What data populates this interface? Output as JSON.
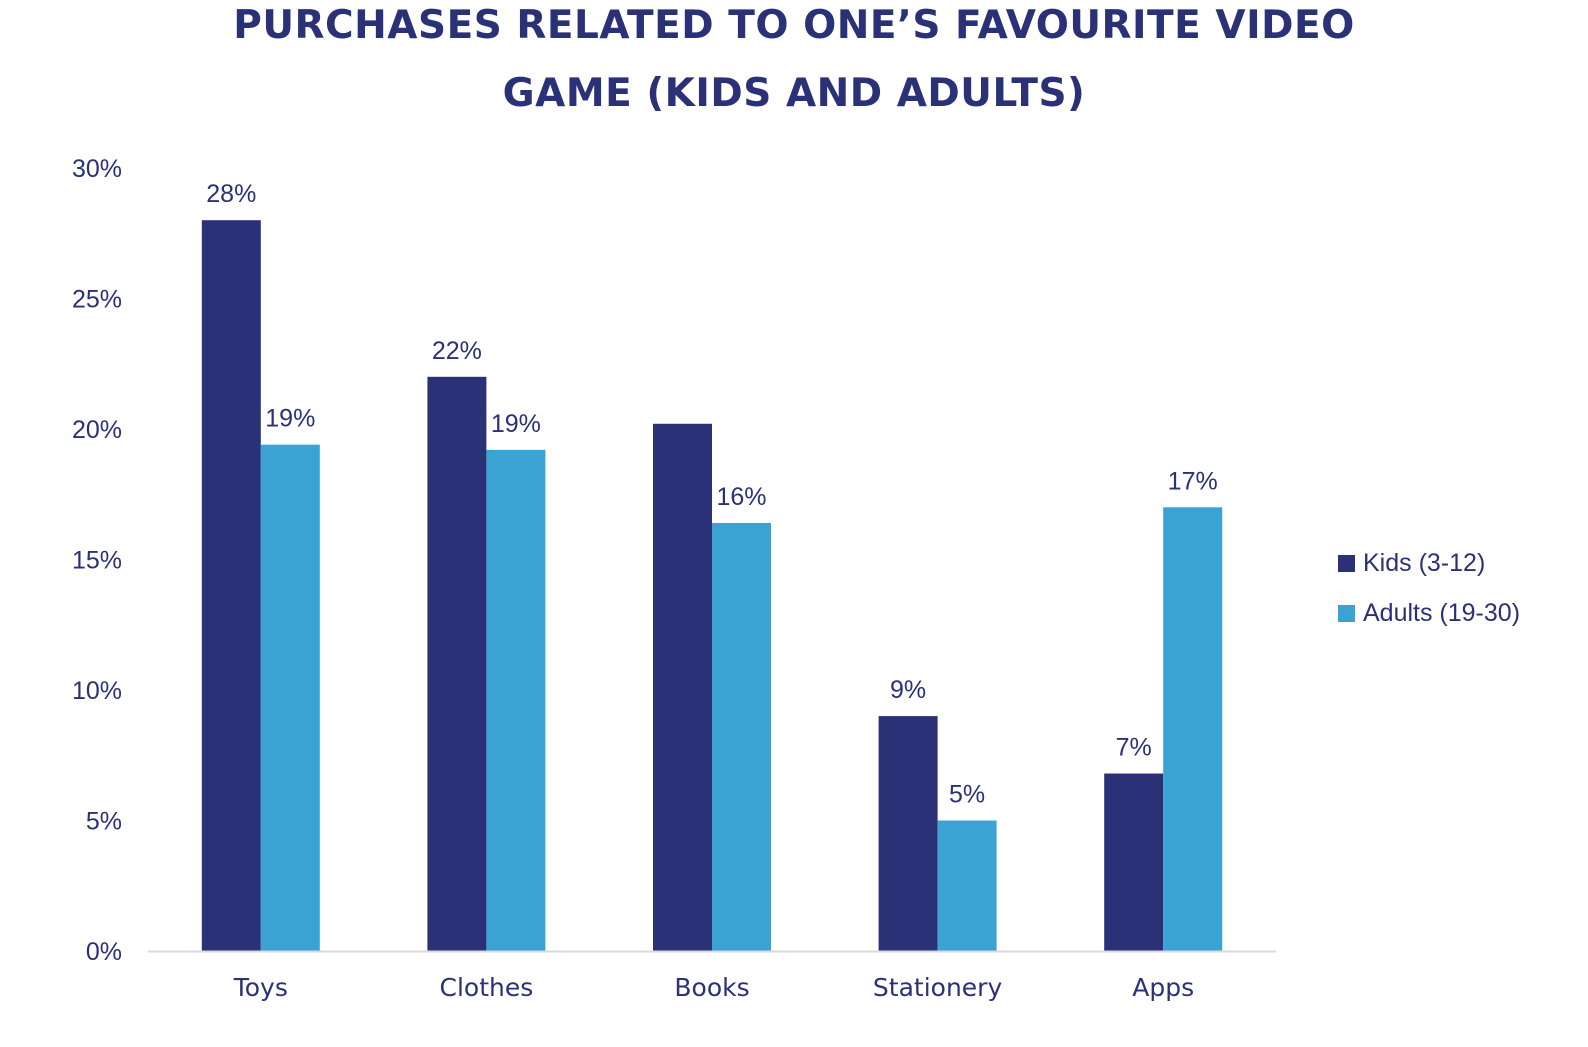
{
  "title_line1": "PURCHASES RELATED TO ONE’S FAVOURITE VIDEO",
  "title_line2": "GAME (KIDS AND ADULTS)",
  "colors": {
    "kids": "#2b3177",
    "adults": "#3ba3d4",
    "text": "#2b3177",
    "axis": "#d9d9d9"
  },
  "chart_data": {
    "type": "bar",
    "title": "PURCHASES RELATED TO ONE’S FAVOURITE VIDEO GAME (KIDS AND ADULTS)",
    "categories": [
      "Toys",
      "Clothes",
      "Books",
      "Stationery",
      "Apps"
    ],
    "series": [
      {
        "name": "Kids (3-12)",
        "values": [
          28,
          22,
          20.2,
          9,
          6.8
        ],
        "labels": [
          "28%",
          "22%",
          "",
          "9%",
          "7%"
        ]
      },
      {
        "name": "Adults (19-30)",
        "values": [
          19.4,
          19.2,
          16.4,
          5,
          17
        ],
        "labels": [
          "19%",
          "19%",
          "16%",
          "5%",
          "17%"
        ]
      }
    ],
    "ylim": [
      0,
      30
    ],
    "yticks": [
      "0%",
      "5%",
      "10%",
      "15%",
      "20%",
      "25%",
      "30%"
    ],
    "ytick_values": [
      0,
      5,
      10,
      15,
      20,
      25,
      30
    ],
    "grid": false,
    "legend_position": "right"
  }
}
